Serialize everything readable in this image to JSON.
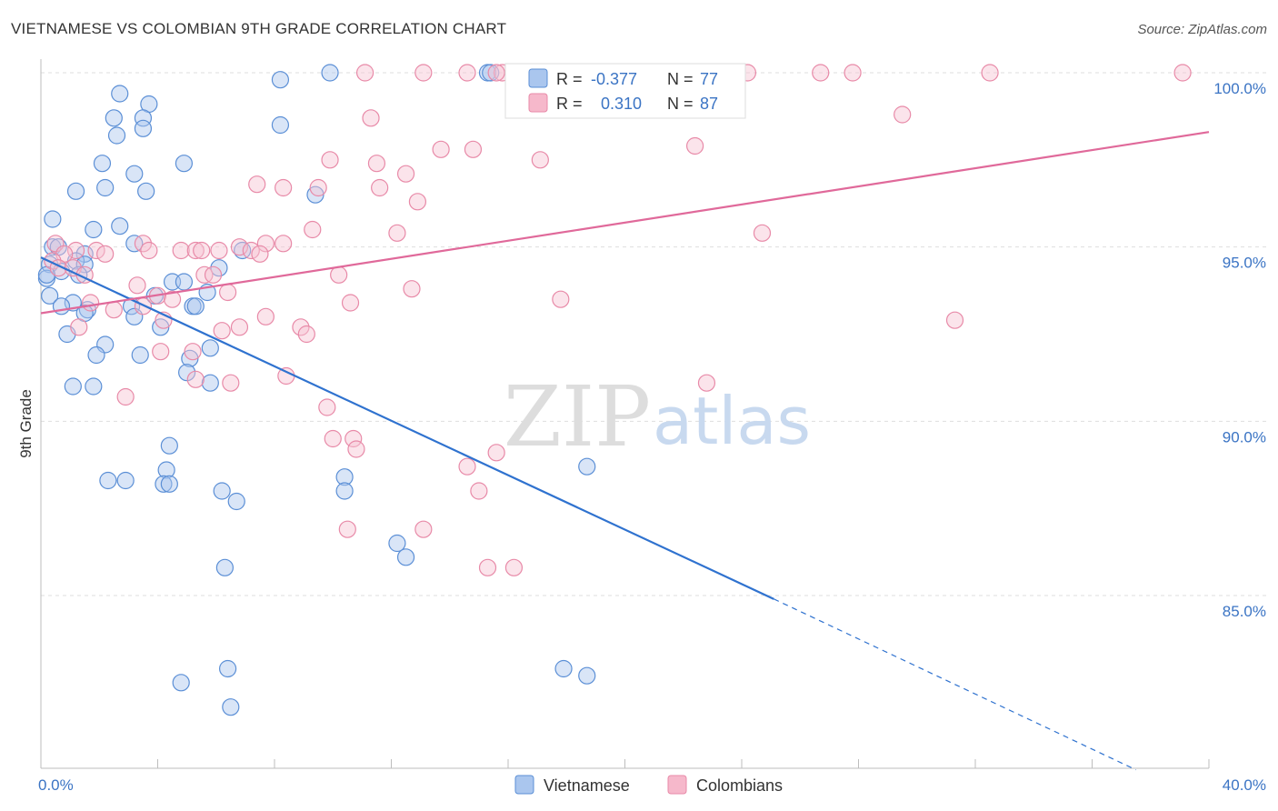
{
  "header": {
    "title": "VIETNAMESE VS COLOMBIAN 9TH GRADE CORRELATION CHART",
    "source": "Source: ZipAtlas.com"
  },
  "watermark": {
    "zip": "ZIP",
    "atlas": "atlas"
  },
  "legend": {
    "rows": [
      {
        "r_label": "R =",
        "r_value": "-0.377",
        "n_label": "N =",
        "n_value": "77",
        "color": "#aac6ee"
      },
      {
        "r_label": "R =",
        "r_value": "0.310",
        "n_label": "N =",
        "n_value": "87",
        "color": "#f6b8cb"
      }
    ]
  },
  "chart_data": {
    "type": "scatter",
    "title": "VIETNAMESE VS COLOMBIAN 9TH GRADE CORRELATION CHART",
    "xlabel": "",
    "ylabel": "9th Grade",
    "xlim": [
      0,
      40
    ],
    "ylim": [
      79.5,
      100.7
    ],
    "x_tick_labels": [
      "0.0%",
      "40.0%"
    ],
    "y_ticks": [
      85,
      90,
      95,
      100
    ],
    "y_tick_labels": [
      "85.0%",
      "90.0%",
      "95.0%",
      "100.0%"
    ],
    "grid": true,
    "legend_position": "top-center",
    "colors": {
      "vietnamese_fill": "#aac6ee",
      "vietnamese_stroke": "#5b8fd6",
      "vietnamese_line": "#2f72cf",
      "colombian_fill": "#f6c3d3",
      "colombian_stroke": "#e88aa8",
      "colombian_line": "#e0699a"
    },
    "series": [
      {
        "name": "Vietnamese",
        "trend": {
          "x": [
            0,
            25.1
          ],
          "y": [
            94.7,
            84.9
          ],
          "dashed_to": [
            37.5,
            80.0
          ]
        },
        "points": [
          [
            9.9,
            100.0
          ],
          [
            15.3,
            100.0
          ],
          [
            8.2,
            99.8
          ],
          [
            2.7,
            99.4
          ],
          [
            3.7,
            99.1
          ],
          [
            2.5,
            98.7
          ],
          [
            3.5,
            98.7
          ],
          [
            8.2,
            98.5
          ],
          [
            3.5,
            98.4
          ],
          [
            2.6,
            98.2
          ],
          [
            2.1,
            97.4
          ],
          [
            4.9,
            97.4
          ],
          [
            3.2,
            97.1
          ],
          [
            2.2,
            96.7
          ],
          [
            1.2,
            96.6
          ],
          [
            3.6,
            96.6
          ],
          [
            9.4,
            96.5
          ],
          [
            0.4,
            95.8
          ],
          [
            1.8,
            95.5
          ],
          [
            2.7,
            95.6
          ],
          [
            0.4,
            95.0
          ],
          [
            0.6,
            95.0
          ],
          [
            3.2,
            95.1
          ],
          [
            1.5,
            94.8
          ],
          [
            6.9,
            94.9
          ],
          [
            1.2,
            94.6
          ],
          [
            1.5,
            94.5
          ],
          [
            0.3,
            94.5
          ],
          [
            6.1,
            94.4
          ],
          [
            0.7,
            94.3
          ],
          [
            1.3,
            94.2
          ],
          [
            0.2,
            94.1
          ],
          [
            4.5,
            94.0
          ],
          [
            4.9,
            94.0
          ],
          [
            0.3,
            93.6
          ],
          [
            3.9,
            93.6
          ],
          [
            5.7,
            93.7
          ],
          [
            1.1,
            93.4
          ],
          [
            0.7,
            93.3
          ],
          [
            1.6,
            93.2
          ],
          [
            3.1,
            93.3
          ],
          [
            5.2,
            93.3
          ],
          [
            5.3,
            93.3
          ],
          [
            1.5,
            93.1
          ],
          [
            3.2,
            93.0
          ],
          [
            4.1,
            92.7
          ],
          [
            0.9,
            92.5
          ],
          [
            2.2,
            92.2
          ],
          [
            5.8,
            92.1
          ],
          [
            1.9,
            91.9
          ],
          [
            3.4,
            91.9
          ],
          [
            5.1,
            91.8
          ],
          [
            5.0,
            91.4
          ],
          [
            1.1,
            91.0
          ],
          [
            1.8,
            91.0
          ],
          [
            5.8,
            91.1
          ],
          [
            4.4,
            89.3
          ],
          [
            4.3,
            88.6
          ],
          [
            10.4,
            88.4
          ],
          [
            2.3,
            88.3
          ],
          [
            2.9,
            88.3
          ],
          [
            4.2,
            88.2
          ],
          [
            4.4,
            88.2
          ],
          [
            6.2,
            88.0
          ],
          [
            10.4,
            88.0
          ],
          [
            6.7,
            87.7
          ],
          [
            18.7,
            88.7
          ],
          [
            12.2,
            86.5
          ],
          [
            12.5,
            86.1
          ],
          [
            6.3,
            85.8
          ],
          [
            17.9,
            82.9
          ],
          [
            18.7,
            82.7
          ],
          [
            6.4,
            82.9
          ],
          [
            4.8,
            82.5
          ],
          [
            6.5,
            81.8
          ],
          [
            15.4,
            100.0
          ],
          [
            0.2,
            94.2
          ]
        ]
      },
      {
        "name": "Colombians",
        "trend": {
          "x": [
            0,
            40
          ],
          "y": [
            93.1,
            98.3
          ]
        },
        "points": [
          [
            11.1,
            100.0
          ],
          [
            13.1,
            100.0
          ],
          [
            14.6,
            100.0
          ],
          [
            15.8,
            100.0
          ],
          [
            20.3,
            100.0
          ],
          [
            24.2,
            100.0
          ],
          [
            26.7,
            100.0
          ],
          [
            27.8,
            100.0
          ],
          [
            32.5,
            100.0
          ],
          [
            39.1,
            100.0
          ],
          [
            11.3,
            98.7
          ],
          [
            29.5,
            98.8
          ],
          [
            13.7,
            97.8
          ],
          [
            14.8,
            97.8
          ],
          [
            22.4,
            97.9
          ],
          [
            9.9,
            97.5
          ],
          [
            11.5,
            97.4
          ],
          [
            17.1,
            97.5
          ],
          [
            12.5,
            97.1
          ],
          [
            7.4,
            96.8
          ],
          [
            8.3,
            96.7
          ],
          [
            9.5,
            96.7
          ],
          [
            11.6,
            96.7
          ],
          [
            12.9,
            96.3
          ],
          [
            9.3,
            95.5
          ],
          [
            12.2,
            95.4
          ],
          [
            24.7,
            95.4
          ],
          [
            0.5,
            95.1
          ],
          [
            3.5,
            95.1
          ],
          [
            6.8,
            95.0
          ],
          [
            7.7,
            95.1
          ],
          [
            8.3,
            95.1
          ],
          [
            1.2,
            94.9
          ],
          [
            1.9,
            94.9
          ],
          [
            2.2,
            94.8
          ],
          [
            3.7,
            94.9
          ],
          [
            4.8,
            94.9
          ],
          [
            5.3,
            94.9
          ],
          [
            5.5,
            94.9
          ],
          [
            6.1,
            94.9
          ],
          [
            7.2,
            94.9
          ],
          [
            7.5,
            94.8
          ],
          [
            0.8,
            94.8
          ],
          [
            0.4,
            94.6
          ],
          [
            0.6,
            94.4
          ],
          [
            1.1,
            94.4
          ],
          [
            1.5,
            94.2
          ],
          [
            5.6,
            94.2
          ],
          [
            5.9,
            94.2
          ],
          [
            10.2,
            94.2
          ],
          [
            3.3,
            93.9
          ],
          [
            12.7,
            93.8
          ],
          [
            6.4,
            93.7
          ],
          [
            4.0,
            93.6
          ],
          [
            4.5,
            93.5
          ],
          [
            10.6,
            93.4
          ],
          [
            17.8,
            93.5
          ],
          [
            1.7,
            93.4
          ],
          [
            2.5,
            93.2
          ],
          [
            3.5,
            93.3
          ],
          [
            4.2,
            92.9
          ],
          [
            7.7,
            93.0
          ],
          [
            8.9,
            92.7
          ],
          [
            6.2,
            92.6
          ],
          [
            6.8,
            92.7
          ],
          [
            1.3,
            92.7
          ],
          [
            9.1,
            92.5
          ],
          [
            31.3,
            92.9
          ],
          [
            4.1,
            92.0
          ],
          [
            5.2,
            92.0
          ],
          [
            8.4,
            91.3
          ],
          [
            5.3,
            91.2
          ],
          [
            22.8,
            91.1
          ],
          [
            6.5,
            91.1
          ],
          [
            2.9,
            90.7
          ],
          [
            9.8,
            90.4
          ],
          [
            10.0,
            89.5
          ],
          [
            10.7,
            89.5
          ],
          [
            10.8,
            89.2
          ],
          [
            15.6,
            89.1
          ],
          [
            14.6,
            88.7
          ],
          [
            15.0,
            88.0
          ],
          [
            10.5,
            86.9
          ],
          [
            13.1,
            86.9
          ],
          [
            15.3,
            85.8
          ],
          [
            16.2,
            85.8
          ],
          [
            15.6,
            100.0
          ]
        ]
      }
    ]
  }
}
